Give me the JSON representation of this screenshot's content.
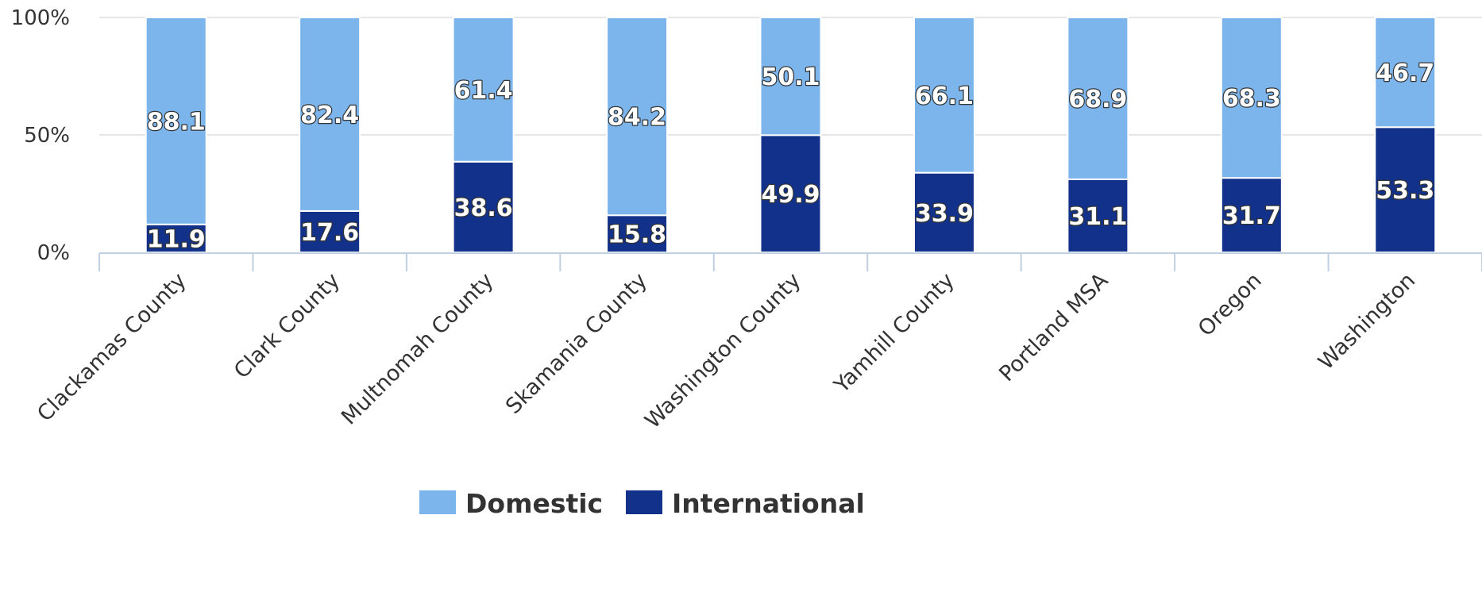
{
  "chart_data": {
    "type": "bar",
    "stacked": true,
    "normalized": true,
    "categories": [
      "Clackamas County",
      "Clark County",
      "Multnomah County",
      "Skamania County",
      "Washington County",
      "Yamhill County",
      "Portland MSA",
      "Oregon",
      "Washington"
    ],
    "series": [
      {
        "name": "International",
        "color": "#12318a",
        "values": [
          11.9,
          17.6,
          38.6,
          15.8,
          49.9,
          33.9,
          31.1,
          31.7,
          53.3
        ]
      },
      {
        "name": "Domestic",
        "color": "#7cb5ec",
        "values": [
          88.1,
          82.4,
          61.4,
          84.2,
          50.1,
          66.1,
          68.9,
          68.3,
          46.7
        ]
      }
    ],
    "y_ticks": [
      "0%",
      "50%",
      "100%"
    ],
    "ylim": [
      0,
      100
    ],
    "grid": true,
    "legend": {
      "position": "bottom-center",
      "items": [
        {
          "label": "Domestic",
          "color": "#7cb5ec"
        },
        {
          "label": "International",
          "color": "#12318a"
        }
      ]
    }
  }
}
